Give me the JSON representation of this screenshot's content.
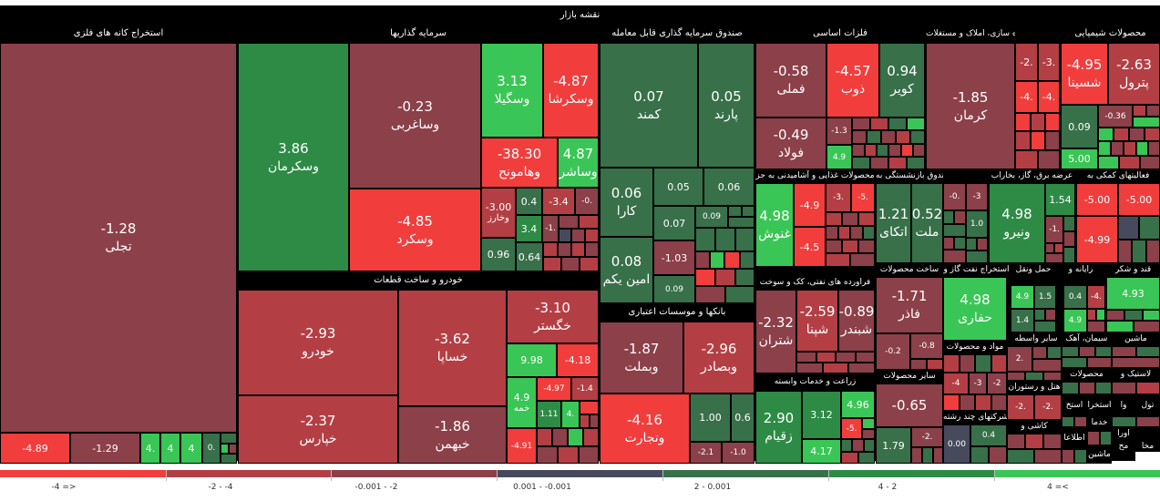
{
  "title": "نقشه بازار",
  "colors": {
    "r3": "#f23d3d",
    "r2": "#b33f45",
    "r1": "#8c4049",
    "n": "#464a5c",
    "g1": "#38704a",
    "g2": "#2e8b46",
    "g3": "#3ac656"
  },
  "sectors": {
    "s1": "محصولات شیمیایی",
    "s2": "انبوه سازی، املاک و مستغلات",
    "s3": "فلزات اساسی",
    "s4": "صندوق سرمایه گذاری قابل معامله",
    "s5": "سرمایه گذاریها",
    "s6": "استخراج کانه های فلزی",
    "s7": "فعالیتهای کمکی به",
    "s8": "عرضه برق، گاز، بخاراب",
    "s9": "بیمه وصندوق بازنشستگی به",
    "s10": "محصولات غذایی و آشامیدنی به جز",
    "s11": "خودرو و ساخت قطعات",
    "s12": "قند و شکر",
    "s13": "رایانه و",
    "s14": "حمل ونقل",
    "s15": "استخراج نفت گاز و",
    "s16": "ساخت محصولات",
    "s17": "فراورده های نفتی، کک و سوخت",
    "s18": "بانکها و موسسات اعتباری",
    "s19": "ماشین",
    "s20": "سیمان، آهک",
    "s21": "سایر واسطه",
    "s22": "مواد و محصولات",
    "s23": "محصولات",
    "s24": "لاستیک و",
    "s25": "سایر محصولات",
    "s26": "زراعت و خدمات وابسته",
    "s27": "هتل و رستوران",
    "s28": "شرکتهای چند رشته",
    "s29": "کاشی و"
  },
  "tiles": {
    "t1": {
      "name": "تجلی",
      "value": "-1.28"
    },
    "t2": {
      "name": "",
      "value": "-4.89"
    },
    "t3": {
      "name": "",
      "value": "-1.29"
    },
    "t4": {
      "name": "",
      "value": "4."
    },
    "t5": {
      "name": "",
      "value": "4"
    },
    "t6": {
      "name": "",
      "value": "4"
    },
    "t7": {
      "name": "",
      "value": "0."
    },
    "t8": {
      "name": "وسکرمان",
      "value": "3.86"
    },
    "t9": {
      "name": "وساغربی",
      "value": "-0.23"
    },
    "t10": {
      "name": "وسگیلا",
      "value": "3.13"
    },
    "t11": {
      "name": "وسکرشا",
      "value": "-4.87"
    },
    "t12": {
      "name": "وسکرد",
      "value": "-4.85"
    },
    "t13": {
      "name": "وهامونح",
      "value": "-38.30"
    },
    "t14": {
      "name": "وساشر",
      "value": "4.87"
    },
    "t15": {
      "name": "وخارز",
      "value": "-3.00"
    },
    "t16": {
      "name": "",
      "value": "0.4"
    },
    "t17": {
      "name": "",
      "value": "-3.4"
    },
    "t18": {
      "name": "",
      "value": "-0."
    },
    "t19": {
      "name": "",
      "value": "3.4"
    },
    "t20": {
      "name": "",
      "value": "-1."
    },
    "t21": {
      "name": "",
      "value": "0.96"
    },
    "t22": {
      "name": "",
      "value": "0.64"
    },
    "t23": {
      "name": "کمند",
      "value": "0.07"
    },
    "t24": {
      "name": "پارند",
      "value": "0.05"
    },
    "t25": {
      "name": "کارا",
      "value": "0.06"
    },
    "t26": {
      "name": "",
      "value": "0.05"
    },
    "t27": {
      "name": "",
      "value": "0.06"
    },
    "t28": {
      "name": "",
      "value": "0.07"
    },
    "t29": {
      "name": "",
      "value": "0.09"
    },
    "t30": {
      "name": "امین یکم",
      "value": "0.08"
    },
    "t31": {
      "name": "",
      "value": "-1.03"
    },
    "t32": {
      "name": "",
      "value": "0.09"
    },
    "t33": {
      "name": "فملی",
      "value": "-0.58"
    },
    "t34": {
      "name": "فولاد",
      "value": "-0.49"
    },
    "t35": {
      "name": "ذوب",
      "value": "-4.57"
    },
    "t36": {
      "name": "کویر",
      "value": "0.94"
    },
    "t37": {
      "name": "",
      "value": "-1.3"
    },
    "t38": {
      "name": "",
      "value": "4.9"
    },
    "t39": {
      "name": "کرمان",
      "value": "-1.85"
    },
    "t40": {
      "name": "",
      "value": "-2."
    },
    "t41": {
      "name": "",
      "value": "-3."
    },
    "t42": {
      "name": "",
      "value": "-4."
    },
    "t43": {
      "name": "",
      "value": "-4."
    },
    "t44": {
      "name": "شسینا",
      "value": "-4.95"
    },
    "t45": {
      "name": "پترول",
      "value": "-2.63"
    },
    "t46": {
      "name": "",
      "value": "0.09"
    },
    "t47": {
      "name": "",
      "value": "5.00"
    },
    "t48": {
      "name": "",
      "value": "-0.36"
    },
    "t49": {
      "name": "خودرو",
      "value": "-2.93"
    },
    "t50": {
      "name": "خپارس",
      "value": "-2.37"
    },
    "t51": {
      "name": "خساپا",
      "value": "-3.62"
    },
    "t52": {
      "name": "خبهمن",
      "value": "-1.86"
    },
    "t53": {
      "name": "خگستر",
      "value": "-3.10"
    },
    "t54": {
      "name": "",
      "value": "9.98"
    },
    "t55": {
      "name": "",
      "value": "-4.18"
    },
    "t56": {
      "name": "خمه",
      "value": "4.9"
    },
    "t57": {
      "name": "",
      "value": "-4.97"
    },
    "t58": {
      "name": "",
      "value": "-1.4"
    },
    "t59": {
      "name": "",
      "value": "1.11"
    },
    "t60": {
      "name": "",
      "value": "4."
    },
    "t61": {
      "name": "",
      "value": "-4.91"
    },
    "t62": {
      "name": "وبملت",
      "value": "-1.87"
    },
    "t63": {
      "name": "وبصادر",
      "value": "-2.96"
    },
    "t64": {
      "name": "وتجارت",
      "value": "-4.16"
    },
    "t65": {
      "name": "",
      "value": "1.00"
    },
    "t66": {
      "name": "",
      "value": "0.6"
    },
    "t67": {
      "name": "",
      "value": "-2.1"
    },
    "t68": {
      "name": "",
      "value": "-1.0"
    },
    "t69": {
      "name": "غنوش",
      "value": "4.98"
    },
    "t70": {
      "name": "",
      "value": "-4.9"
    },
    "t71": {
      "name": "",
      "value": "-4.5"
    },
    "t72": {
      "name": "",
      "value": "-3."
    },
    "t73": {
      "name": "",
      "value": "-5."
    },
    "t74": {
      "name": "اتکای",
      "value": "1.21"
    },
    "t75": {
      "name": "ملت",
      "value": "0.52"
    },
    "t76": {
      "name": "",
      "value": "-0."
    },
    "t77": {
      "name": "",
      "value": "-3"
    },
    "t78": {
      "name": "",
      "value": "1.0"
    },
    "t79": {
      "name": "ونیرو",
      "value": "4.98"
    },
    "t80": {
      "name": "",
      "value": "1.54"
    },
    "t81": {
      "name": "",
      "value": "-1."
    },
    "t82": {
      "name": "",
      "value": "-5.00"
    },
    "t83": {
      "name": "",
      "value": "-5.00"
    },
    "t84": {
      "name": "",
      "value": "-4.99"
    },
    "t85": {
      "name": "شتران",
      "value": "-2.32"
    },
    "t86": {
      "name": "شپنا",
      "value": "-2.59"
    },
    "t87": {
      "name": "شبندر",
      "value": "-0.89"
    },
    "t88": {
      "name": "فاذر",
      "value": "-1.71"
    },
    "t89": {
      "name": "",
      "value": "-0.2"
    },
    "t90": {
      "name": "",
      "value": "-0.8"
    },
    "t91": {
      "name": "حفاری",
      "value": "4.98"
    },
    "t92": {
      "name": "",
      "value": "4.9"
    },
    "t93": {
      "name": "",
      "value": "1.5"
    },
    "t94": {
      "name": "",
      "value": "1.4"
    },
    "t95": {
      "name": "",
      "value": "0.4"
    },
    "t96": {
      "name": "",
      "value": "-4."
    },
    "t97": {
      "name": "",
      "value": "4.9"
    },
    "t98": {
      "name": "",
      "value": "4.93"
    },
    "t99": {
      "name": "زقیام",
      "value": "2.90"
    },
    "t100": {
      "name": "",
      "value": "3.12"
    },
    "t101": {
      "name": "",
      "value": "4.96"
    },
    "t102": {
      "name": "",
      "value": "-5."
    },
    "t103": {
      "name": "",
      "value": "4.17"
    },
    "t104": {
      "name": "",
      "value": "-0.65"
    },
    "t105": {
      "name": "",
      "value": "1.79"
    },
    "t106": {
      "name": "",
      "value": "-2."
    },
    "t107": {
      "name": "",
      "value": "0.00"
    },
    "t108": {
      "name": "",
      "value": "0.4"
    },
    "t109": {
      "name": "",
      "value": "-4"
    },
    "t110": {
      "name": "",
      "value": "-3"
    },
    "t111": {
      "name": "",
      "value": "-2"
    },
    "t112": {
      "name": "",
      "value": "-2."
    },
    "t113": {
      "name": "",
      "value": "-2."
    },
    "t114": {
      "name": "",
      "value": "2."
    }
  },
  "small_labels": {
    "k1": "استخ",
    "k2": "استخرا",
    "k3": "وا",
    "k4": "تول",
    "k5": "خدما",
    "k6": "اطلاعا",
    "k7": "ماشین",
    "k8": "اورا",
    "k9": "مح",
    "k10": "مخا"
  },
  "legend": {
    "items": [
      "-4 =>",
      "-2 - -4",
      "-0.001 - -2",
      "0.001 - -0.001",
      "2 - 0.001",
      "4 - 2",
      "4 =<"
    ]
  }
}
